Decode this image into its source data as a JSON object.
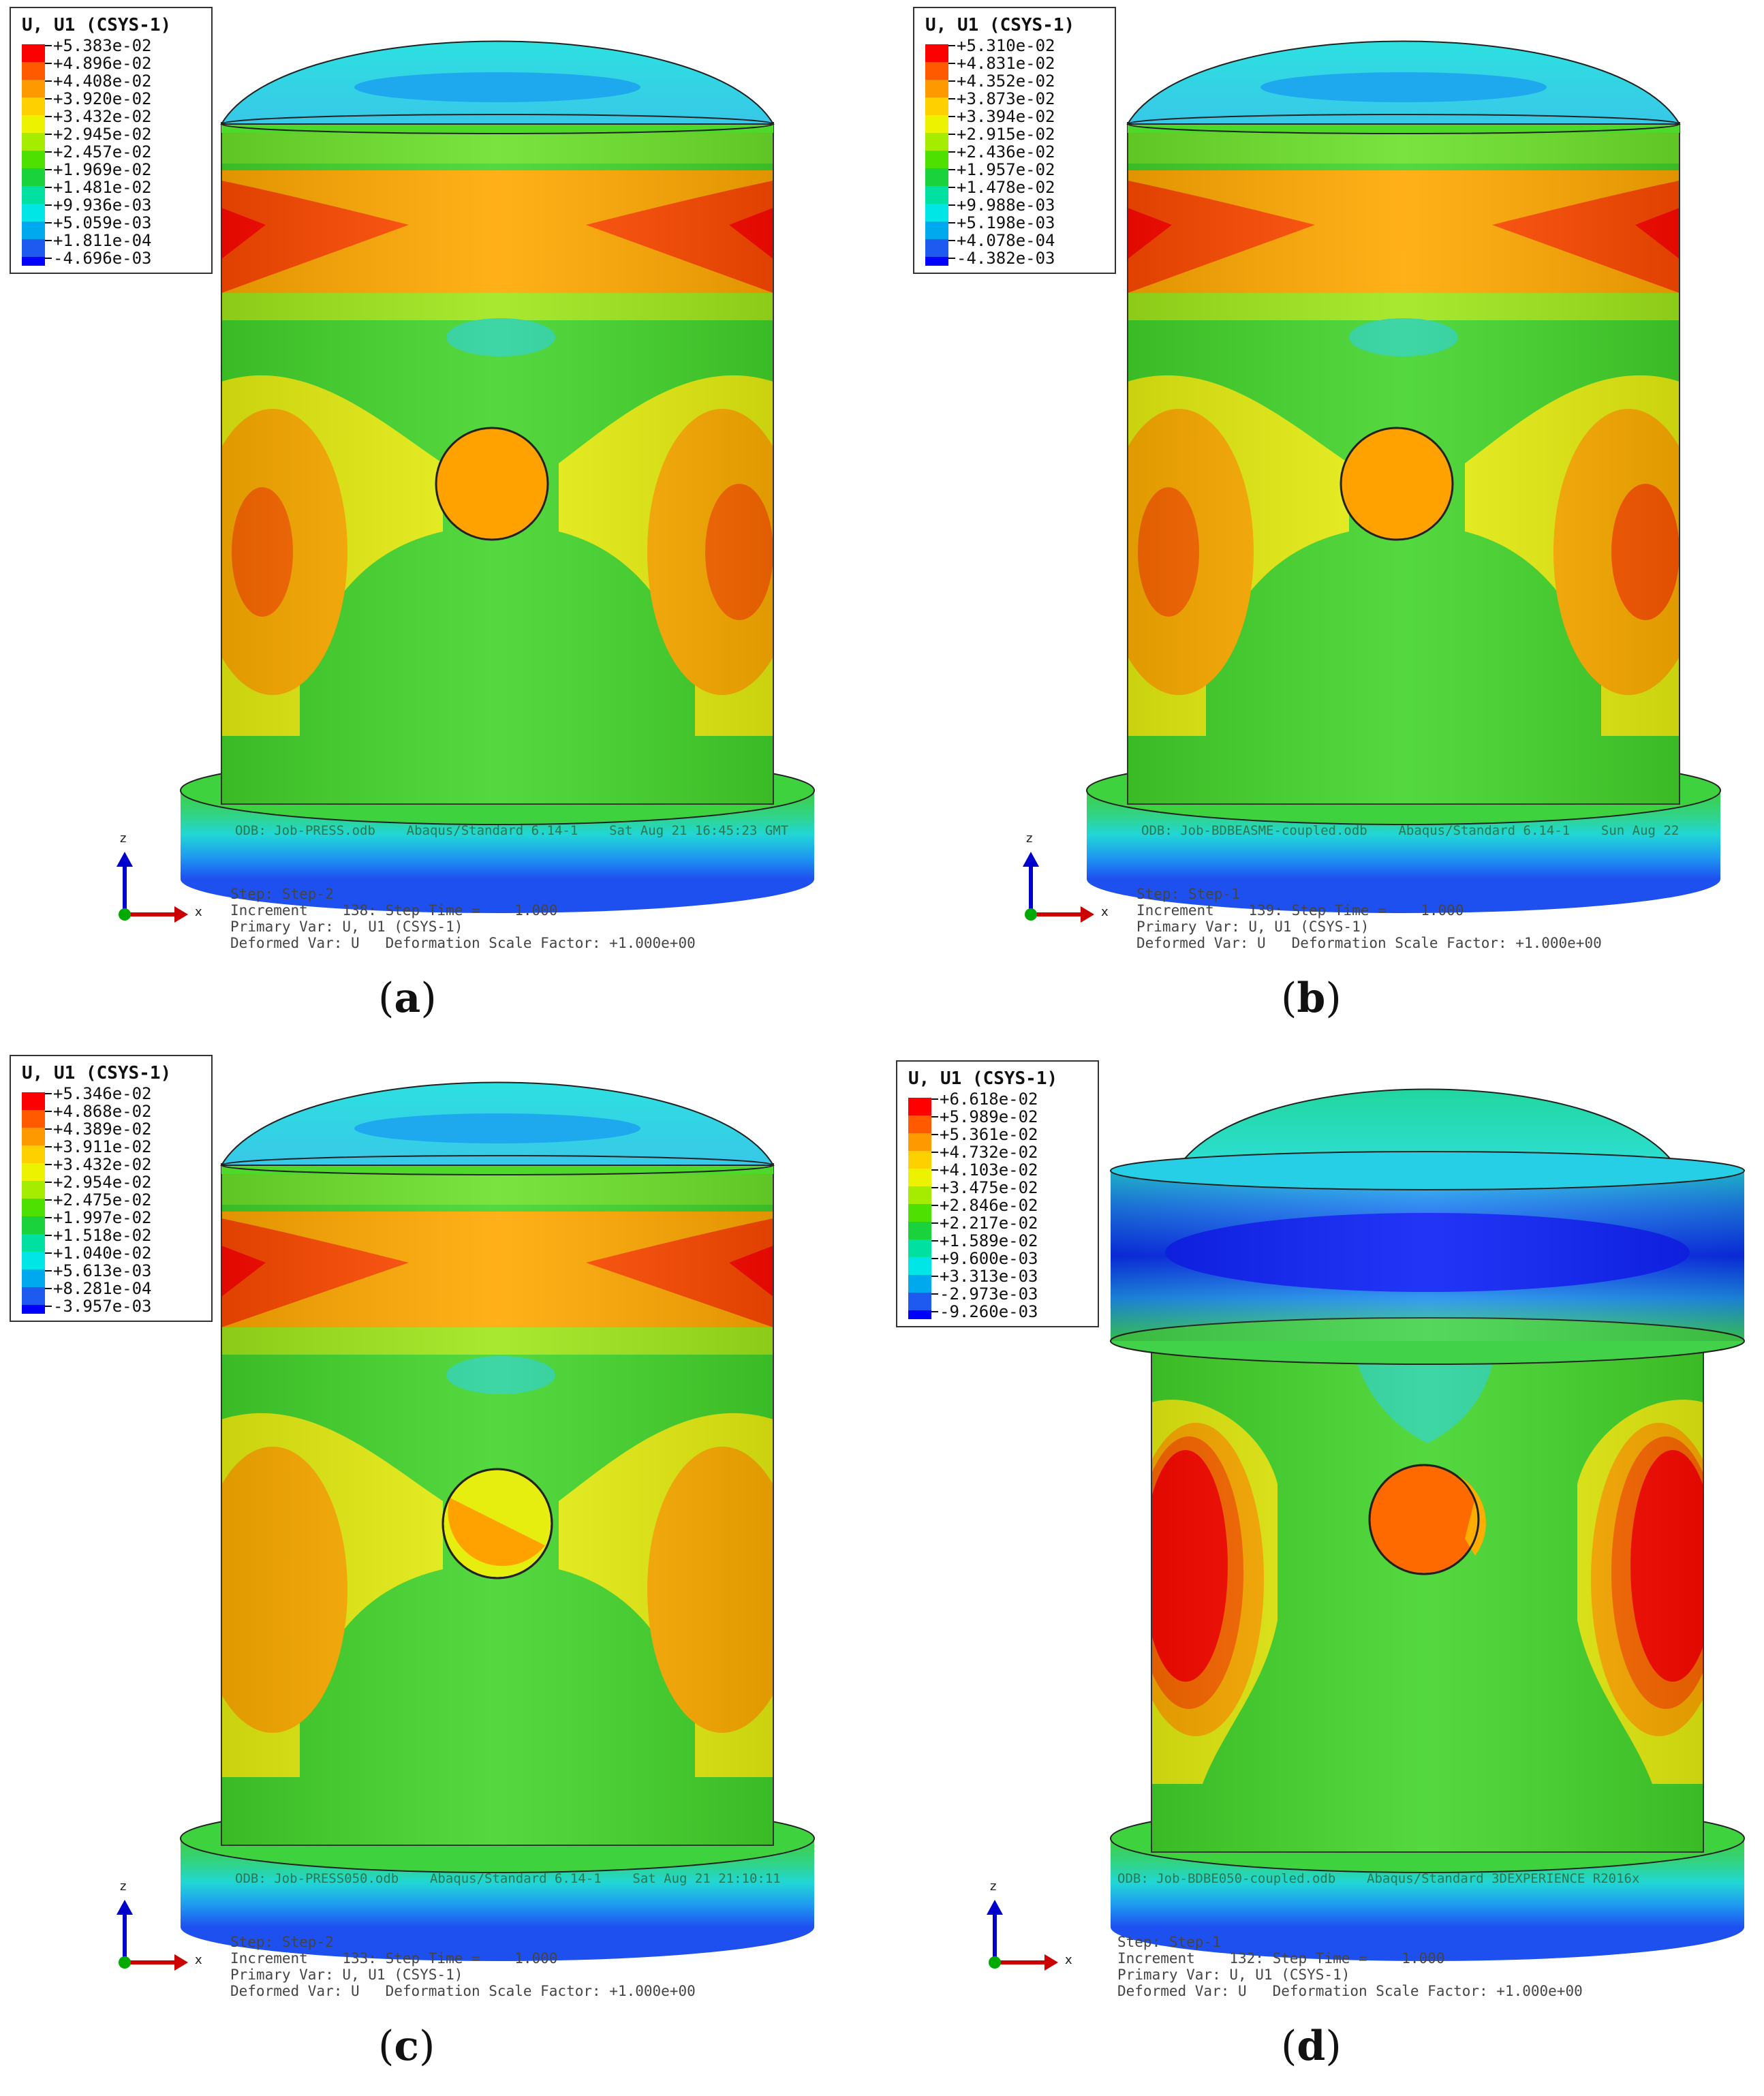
{
  "legend_colors": [
    "#ff0000",
    "#ff5a00",
    "#ff9900",
    "#ffd000",
    "#ecf200",
    "#a6ec00",
    "#4ee000",
    "#1ad23c",
    "#00e0a0",
    "#00e6e6",
    "#00a8ee",
    "#1e5af0",
    "#0000ff"
  ],
  "panels": [
    {
      "id": "a",
      "caption": "a",
      "legend_title": "U, U1 (CSYS-1)",
      "legend_values": [
        "+5.383e-02",
        "+4.896e-02",
        "+4.408e-02",
        "+3.920e-02",
        "+3.432e-02",
        "+2.945e-02",
        "+2.457e-02",
        "+1.969e-02",
        "+1.481e-02",
        "+9.936e-03",
        "+5.059e-03",
        "+1.811e-04",
        "-4.696e-03"
      ],
      "odb_line": "ODB: Job-PRESS.odb    Abaqus/Standard 6.14-1    Sat Aug 21 16:45:23 GMT",
      "step_line": "Step: Step-2",
      "increment_line": "Increment    138: Step Time =    1.000",
      "primary_line": "Primary Var: U, U1 (CSYS-1)",
      "deformed_line": "Deformed Var: U   Deformation Scale Factor: +1.000e+00"
    },
    {
      "id": "b",
      "caption": "b",
      "legend_title": "U, U1 (CSYS-1)",
      "legend_values": [
        "+5.310e-02",
        "+4.831e-02",
        "+4.352e-02",
        "+3.873e-02",
        "+3.394e-02",
        "+2.915e-02",
        "+2.436e-02",
        "+1.957e-02",
        "+1.478e-02",
        "+9.988e-03",
        "+5.198e-03",
        "+4.078e-04",
        "-4.382e-03"
      ],
      "odb_line": "ODB: Job-BDBEASME-coupled.odb    Abaqus/Standard 6.14-1    Sun Aug 22",
      "step_line": "Step: Step-1",
      "increment_line": "Increment    139: Step Time =    1.000",
      "primary_line": "Primary Var: U, U1 (CSYS-1)",
      "deformed_line": "Deformed Var: U   Deformation Scale Factor: +1.000e+00"
    },
    {
      "id": "c",
      "caption": "c",
      "legend_title": "U, U1 (CSYS-1)",
      "legend_values": [
        "+5.346e-02",
        "+4.868e-02",
        "+4.389e-02",
        "+3.911e-02",
        "+3.432e-02",
        "+2.954e-02",
        "+2.475e-02",
        "+1.997e-02",
        "+1.518e-02",
        "+1.040e-02",
        "+5.613e-03",
        "+8.281e-04",
        "-3.957e-03"
      ],
      "odb_line": "ODB: Job-PRESS050.odb    Abaqus/Standard 6.14-1    Sat Aug 21 21:10:11",
      "step_line": "Step: Step-2",
      "increment_line": "Increment    133: Step Time =    1.000",
      "primary_line": "Primary Var: U, U1 (CSYS-1)",
      "deformed_line": "Deformed Var: U   Deformation Scale Factor: +1.000e+00"
    },
    {
      "id": "d",
      "caption": "d",
      "legend_title": "U, U1 (CSYS-1)",
      "legend_values": [
        "+6.618e-02",
        "+5.989e-02",
        "+5.361e-02",
        "+4.732e-02",
        "+4.103e-02",
        "+3.475e-02",
        "+2.846e-02",
        "+2.217e-02",
        "+1.589e-02",
        "+9.600e-03",
        "+3.313e-03",
        "-2.973e-03",
        "-9.260e-03"
      ],
      "odb_line": "ODB: Job-BDBE050-coupled.odb    Abaqus/Standard 3DEXPERIENCE R2016x",
      "step_line": "Step: Step-1",
      "increment_line": "Increment    132: Step Time =    1.000",
      "primary_line": "Primary Var: U, U1 (CSYS-1)",
      "deformed_line": "Deformed Var: U   Deformation Scale Factor: +1.000e+00"
    }
  ],
  "axis": {
    "z_label": "z",
    "x_label": "x"
  }
}
